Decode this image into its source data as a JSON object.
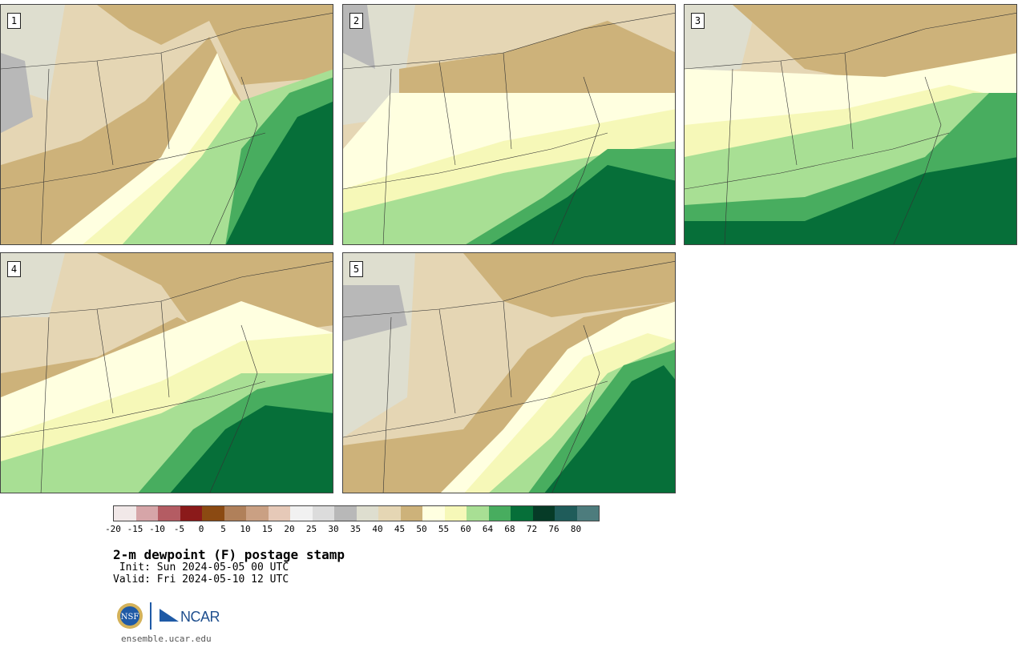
{
  "panels": [
    {
      "label": "1"
    },
    {
      "label": "2"
    },
    {
      "label": "3"
    },
    {
      "label": "4"
    },
    {
      "label": "5"
    }
  ],
  "colorbar": {
    "colors": [
      "#f1e8e8",
      "#d6a5a8",
      "#b45c63",
      "#8b1a1a",
      "#8b4a12",
      "#b0805a",
      "#caa083",
      "#e6c9b8",
      "#f1f1f1",
      "#dcdcdc",
      "#b8b8b8",
      "#dedecf",
      "#e5d6b4",
      "#cdb27a",
      "#ffffe0",
      "#f6f8b8",
      "#a8df94",
      "#48ad5f",
      "#066f39",
      "#063b27",
      "#1f5c5a",
      "#4d7c7d"
    ],
    "ticks": [
      "-20",
      "-15",
      "-10",
      "-5",
      "0",
      "5",
      "10",
      "15",
      "20",
      "25",
      "30",
      "35",
      "40",
      "45",
      "50",
      "55",
      "60",
      "64",
      "68",
      "72",
      "76",
      "80"
    ]
  },
  "title": "2-m dewpoint (F) postage stamp",
  "init": " Init: Sun 2024-05-05 00 UTC",
  "valid": "Valid: Fri 2024-05-10 12 UTC",
  "logos": {
    "nsf": "NSF",
    "ncar": "NCAR"
  },
  "site": "ensemble.ucar.edu"
}
